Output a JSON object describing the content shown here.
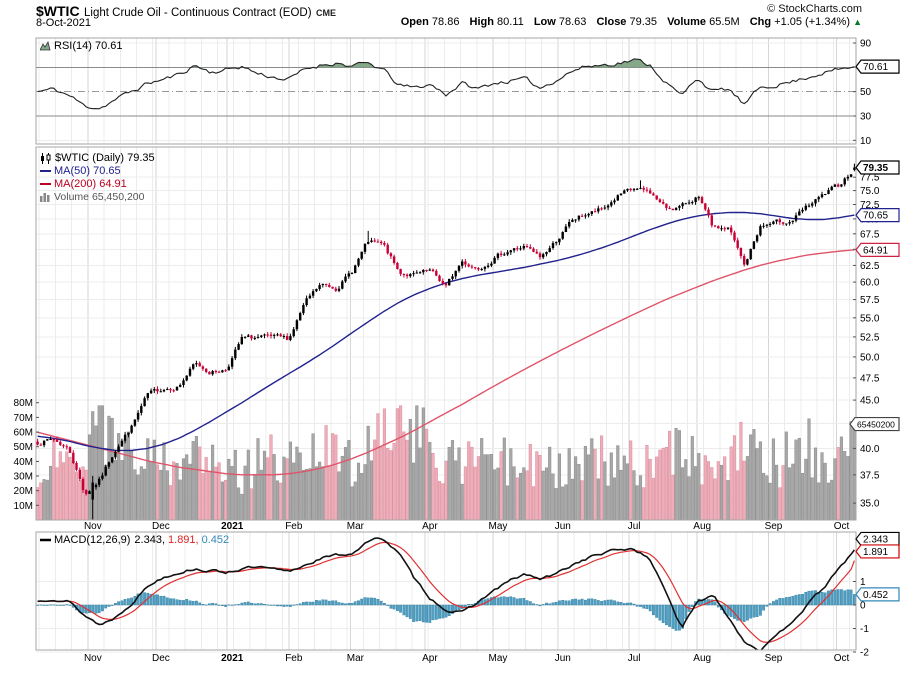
{
  "header": {
    "symbol": "$WTIC",
    "name": "Light Crude Oil - Continuous Contract (EOD)",
    "exchange": "CME",
    "date": "8-Oct-2021",
    "copyright": "© StockCharts.com",
    "quote": {
      "open_label": "Open",
      "open": "78.86",
      "high_label": "High",
      "high": "80.11",
      "low_label": "Low",
      "low": "78.63",
      "close_label": "Close",
      "close": "79.35",
      "volume_label": "Volume",
      "volume": "65.5M",
      "chg_label": "Chg",
      "chg": "+1.05 (+1.34%)",
      "chg_arrow": "▲"
    }
  },
  "rsi_panel": {
    "legend": "RSI(14) 70.61",
    "last_box": "70.61",
    "ticks": [
      "90",
      "50",
      "30",
      "10"
    ]
  },
  "main_panel": {
    "legend_symbol": "$WTIC (Daily) 79.35",
    "ma50_legend": "MA(50) 70.65",
    "ma200_legend": "MA(200) 64.91",
    "volume_legend": "Volume 65,450,200",
    "price_ticks": [
      "77.5",
      "75.0",
      "72.5",
      "70.0",
      "67.5",
      "65.0",
      "62.5",
      "60.0",
      "57.5",
      "55.0",
      "52.5",
      "50.0",
      "47.5",
      "45.0",
      "42.5",
      "40.0",
      "37.5",
      "35.0"
    ],
    "volume_ticks": [
      "80M",
      "70M",
      "60M",
      "50M",
      "40M",
      "30M",
      "20M",
      "10M"
    ],
    "price_box": "79.35",
    "ma50_box": "70.65",
    "ma200_box": "64.91",
    "volume_box": "65450200"
  },
  "macd_panel": {
    "legend": "MACD(12,26,9)",
    "macd_value": "2.343,",
    "signal_value": "1.891,",
    "hist_value": "0.452",
    "ticks": [
      "1",
      "0",
      "-1",
      "-2"
    ],
    "macd_box": "2.343",
    "signal_box": "1.891",
    "hist_box": "0.452"
  },
  "axis": {
    "months": [
      "Nov",
      "Dec",
      "2021",
      "Feb",
      "Mar",
      "Apr",
      "May",
      "Jun",
      "Jul",
      "Aug",
      "Sep",
      "Oct"
    ],
    "bold_index": 2
  },
  "colors": {
    "candle_up": "#000000",
    "candle_down": "#c80036",
    "vol_up": "#a8a8a8",
    "vol_up_edge": "#8a8a8a",
    "vol_down": "#eeafba",
    "vol_down_edge": "#d98c9b",
    "ma50": "#22228f",
    "ma200": "#e0546a",
    "rsi_line": "#222222",
    "rsi_fill": "#85a888",
    "macd_line": "#111111",
    "signal_line": "#e03030",
    "hist_fill": "#519fc2",
    "hist_edge": "#2e7da2",
    "grid_minor": "#ececec",
    "grid_month": "#d6d6d6",
    "panel_border": "#a6a6a6",
    "level_line": "#888888",
    "chg_up": "#007a29"
  },
  "chart_data": [
    {
      "id": "rsi",
      "type": "line",
      "title": "RSI(14)",
      "last_value": 70.61,
      "range": [
        10,
        90
      ],
      "overbought_level": 70,
      "midline": 50,
      "oversold_level": 30,
      "x_span": "Oct 2020 - Oct 2021, weekly anchor values",
      "weekly_values": [
        50,
        52,
        47,
        38,
        37,
        44,
        50,
        57,
        60,
        64,
        72,
        66,
        68,
        71,
        65,
        62,
        60,
        68,
        72,
        74,
        71,
        73,
        68,
        55,
        53,
        56,
        48,
        57,
        52,
        57,
        59,
        60,
        53,
        60,
        67,
        71,
        72,
        74,
        76,
        72,
        58,
        46,
        62,
        50,
        52,
        39,
        53,
        56,
        58,
        62,
        66,
        68,
        70.61
      ]
    },
    {
      "id": "price",
      "type": "candlestick",
      "title": "$WTIC (Daily)",
      "scale": "log",
      "ylim": [
        33.6,
        80.5
      ],
      "last_ohlc": {
        "open": 78.86,
        "high": 80.11,
        "low": 78.63,
        "close": 79.35
      },
      "nov2_2020_low": 33.64,
      "weekly_closes": [
        40.6,
        40.9,
        39.9,
        35.8,
        37.1,
        40.1,
        42.2,
        45.5,
        46.3,
        46.6,
        49.1,
        48.2,
        48.5,
        52.2,
        52.4,
        52.3,
        52.2,
        56.9,
        59.5,
        59.2,
        61.5,
        66.1,
        65.6,
        61.4,
        61.0,
        61.5,
        59.3,
        63.1,
        62.1,
        63.6,
        64.9,
        65.4,
        63.6,
        66.3,
        69.6,
        70.9,
        71.6,
        74.1,
        75.2,
        74.6,
        71.8,
        72.1,
        74.0,
        68.3,
        68.4,
        62.3,
        68.7,
        69.3,
        69.7,
        72.0,
        74.0,
        75.9,
        79.35
      ],
      "ma50_weekly": [
        41.2,
        41.0,
        40.7,
        40.3,
        40.0,
        39.8,
        39.8,
        40.0,
        40.4,
        41.0,
        41.8,
        42.7,
        43.7,
        44.7,
        45.8,
        46.9,
        48.0,
        49.1,
        50.3,
        51.6,
        53.0,
        54.4,
        55.8,
        57.1,
        58.2,
        59.1,
        59.9,
        60.5,
        61.0,
        61.4,
        61.8,
        62.2,
        62.7,
        63.2,
        63.8,
        64.5,
        65.3,
        66.2,
        67.2,
        68.2,
        69.1,
        69.9,
        70.5,
        70.9,
        71.1,
        71.1,
        70.9,
        70.5,
        70.1,
        69.9,
        69.9,
        70.2,
        70.65
      ],
      "ma200_weekly": [
        41.6,
        41.2,
        40.8,
        40.4,
        40.0,
        39.6,
        39.2,
        38.8,
        38.5,
        38.2,
        38.0,
        37.8,
        37.6,
        37.5,
        37.5,
        37.5,
        37.6,
        37.8,
        38.1,
        38.5,
        39.0,
        39.6,
        40.3,
        41.0,
        41.8,
        42.7,
        43.6,
        44.5,
        45.5,
        46.5,
        47.5,
        48.5,
        49.5,
        50.5,
        51.5,
        52.5,
        53.5,
        54.5,
        55.5,
        56.5,
        57.5,
        58.4,
        59.3,
        60.2,
        61.0,
        61.8,
        62.5,
        63.1,
        63.6,
        64.1,
        64.4,
        64.7,
        64.91
      ],
      "ma50_last": 70.65,
      "ma200_last": 64.91,
      "volume_weekly_millions": [
        30,
        32,
        34,
        48,
        62,
        55,
        48,
        42,
        38,
        36,
        42,
        40,
        36,
        32,
        42,
        40,
        38,
        36,
        46,
        44,
        40,
        44,
        54,
        58,
        62,
        46,
        42,
        44,
        40,
        42,
        38,
        40,
        38,
        36,
        40,
        38,
        40,
        42,
        38,
        36,
        44,
        46,
        40,
        44,
        42,
        48,
        44,
        38,
        40,
        42,
        40,
        44,
        58
      ],
      "last_volume": 65450200,
      "volume_ylim_millions": [
        0,
        85
      ]
    },
    {
      "id": "macd",
      "type": "line+histogram",
      "title": "MACD(12,26,9)",
      "ylim": [
        -2.4,
        3.1
      ],
      "last_values": {
        "macd": 2.343,
        "signal": 1.891,
        "histogram": 0.452
      },
      "weekly_macd": [
        0.15,
        0.3,
        0.15,
        -0.45,
        -0.85,
        -0.5,
        0.1,
        0.8,
        1.2,
        1.4,
        1.55,
        1.45,
        1.4,
        1.55,
        1.6,
        1.5,
        1.4,
        1.7,
        2.0,
        2.1,
        2.2,
        2.7,
        2.85,
        2.2,
        1.1,
        0.3,
        -0.2,
        -0.35,
        0.1,
        0.6,
        1.0,
        1.3,
        1.1,
        1.3,
        1.7,
        2.0,
        2.2,
        2.35,
        2.4,
        1.9,
        0.6,
        -1.0,
        0.1,
        0.45,
        -0.5,
        -1.55,
        -1.9,
        -1.4,
        -0.7,
        0.0,
        0.7,
        1.5,
        2.343
      ]
    }
  ],
  "timeline": {
    "trading_days": 253,
    "month_start_day_index": [
      16,
      37,
      59,
      78,
      97,
      120,
      141,
      161,
      183,
      204,
      226,
      247
    ],
    "deep_low_day_index": 17
  }
}
